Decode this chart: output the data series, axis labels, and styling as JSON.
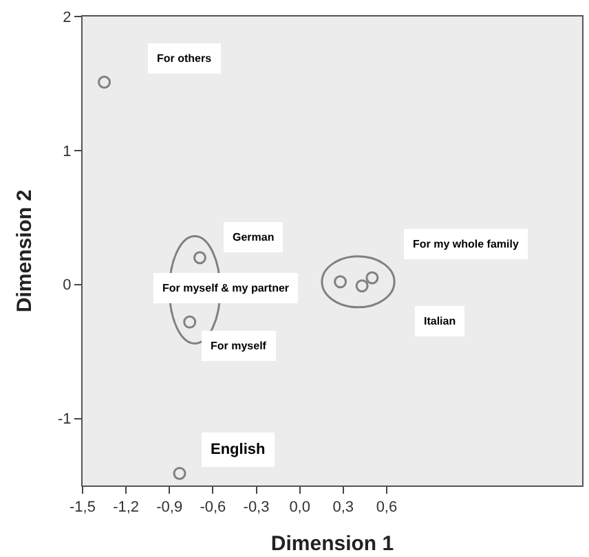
{
  "chart_data": {
    "type": "scatter",
    "xlabel": "Dimension 1",
    "ylabel": "Dimension 2",
    "x": [
      -1.35,
      -0.69,
      0.28,
      -0.76,
      0.5,
      0.43,
      -0.83
    ],
    "series": [
      {
        "color": "#808080",
        "values": [
          1.51,
          0.2,
          0.02,
          -0.28,
          0.05,
          -0.01,
          -1.41
        ]
      }
    ],
    "annotations": [
      "For others",
      "German",
      "For myself & my partner",
      "For myself",
      "For my whole family",
      "Italian",
      "English"
    ],
    "xlim": [
      -1.5,
      1.95
    ],
    "ylim": [
      -1.5,
      2
    ],
    "xticks": [
      {
        "value": -1.5,
        "label": "-1,5"
      },
      {
        "value": -1.2,
        "label": "-1,2"
      },
      {
        "value": -0.9,
        "label": "-0,9"
      },
      {
        "value": -0.6,
        "label": "-0,6"
      },
      {
        "value": -0.3,
        "label": "-0,3"
      },
      {
        "value": 0,
        "label": "0,0"
      },
      {
        "value": 0.3,
        "label": "0,3"
      },
      {
        "value": 0.6,
        "label": "0,6"
      }
    ],
    "yticks": [
      -1,
      0,
      1,
      2
    ],
    "grid": false,
    "legend": false,
    "marker": "circle"
  }
}
